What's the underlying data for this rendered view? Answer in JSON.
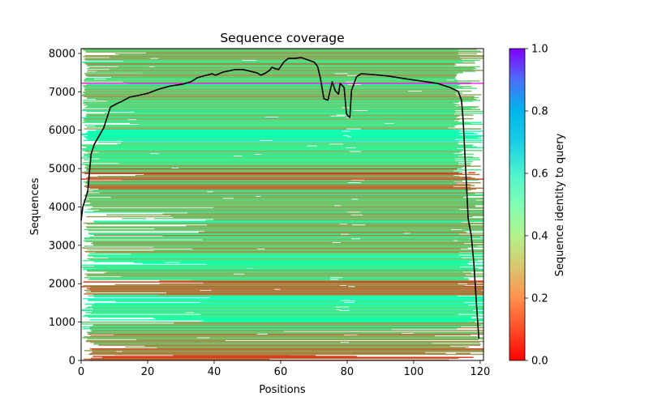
{
  "chart_data": {
    "type": "heatmap",
    "title": "Sequence coverage",
    "xlabel": "Positions",
    "ylabel": "Sequences",
    "xlim": [
      0,
      121
    ],
    "ylim": [
      0,
      8125
    ],
    "xticks": [
      0,
      20,
      40,
      60,
      80,
      100,
      120
    ],
    "yticks": [
      0,
      1000,
      2000,
      3000,
      4000,
      5000,
      6000,
      7000,
      8000
    ],
    "grid": false,
    "colorbar": {
      "label": "Sequence identity to query",
      "colormap": "rainbow_r",
      "range": [
        0.0,
        1.0
      ],
      "ticks": [
        "0.0",
        "0.2",
        "0.4",
        "0.6",
        "0.8",
        "1.0"
      ],
      "placement": "right"
    },
    "query_line": {
      "sequence_index": 7220,
      "identity": 1.0
    },
    "identity_bands": [
      {
        "from": 0,
        "to": 150,
        "identity": 0.08
      },
      {
        "from": 150,
        "to": 700,
        "identity": 0.22
      },
      {
        "from": 700,
        "to": 1000,
        "identity": 0.3
      },
      {
        "from": 1000,
        "to": 1700,
        "identity": 0.42
      },
      {
        "from": 1700,
        "to": 2100,
        "identity": 0.18
      },
      {
        "from": 2100,
        "to": 2400,
        "identity": 0.28
      },
      {
        "from": 2400,
        "to": 2800,
        "identity": 0.4
      },
      {
        "from": 2800,
        "to": 4500,
        "identity": 0.27
      },
      {
        "from": 4500,
        "to": 5100,
        "identity": 0.2
      },
      {
        "from": 5100,
        "to": 5700,
        "identity": 0.36
      },
      {
        "from": 5700,
        "to": 6000,
        "identity": 0.5
      },
      {
        "from": 6000,
        "to": 6600,
        "identity": 0.34
      },
      {
        "from": 6600,
        "to": 7500,
        "identity": 0.3
      },
      {
        "from": 7500,
        "to": 8125,
        "identity": 0.27
      }
    ],
    "series": [
      {
        "name": "coverage",
        "color": "#000000",
        "x": [
          0,
          0.5,
          2,
          3,
          4,
          5.4,
          6.8,
          7.8,
          8.8,
          10.7,
          12.2,
          14.6,
          17,
          20,
          23.4,
          26.8,
          30.7,
          33,
          35,
          37.7,
          39.4,
          40.4,
          42.6,
          46.3,
          48.7,
          51.1,
          53,
          54,
          55.5,
          56.7,
          57.4,
          58.4,
          59.4,
          60.9,
          62.3,
          64.3,
          66.2,
          68.2,
          70.1,
          71.1,
          72,
          73,
          74.2,
          75.5,
          76.4,
          77.4,
          77.9,
          79.1,
          79.8,
          80.8,
          81.3,
          82.8,
          84.2,
          87.6,
          92.5,
          97.4,
          102.2,
          107.1,
          111,
          113.4,
          114.4,
          114.9,
          115.4,
          115.9,
          116.4,
          117.3,
          118.1,
          118.8,
          119.3,
          119.6
        ],
        "y": [
          3650,
          3990,
          4410,
          5380,
          5640,
          5850,
          6060,
          6330,
          6600,
          6690,
          6750,
          6860,
          6900,
          6960,
          7070,
          7150,
          7200,
          7260,
          7370,
          7430,
          7470,
          7430,
          7510,
          7580,
          7580,
          7530,
          7490,
          7430,
          7490,
          7560,
          7640,
          7600,
          7580,
          7770,
          7870,
          7870,
          7890,
          7830,
          7770,
          7660,
          7340,
          6820,
          6780,
          7260,
          7030,
          6940,
          7220,
          7110,
          6420,
          6330,
          7030,
          7390,
          7470,
          7450,
          7410,
          7340,
          7280,
          7220,
          7110,
          7010,
          6780,
          6230,
          5380,
          4540,
          3690,
          3270,
          2530,
          1580,
          950,
          570
        ]
      }
    ]
  }
}
